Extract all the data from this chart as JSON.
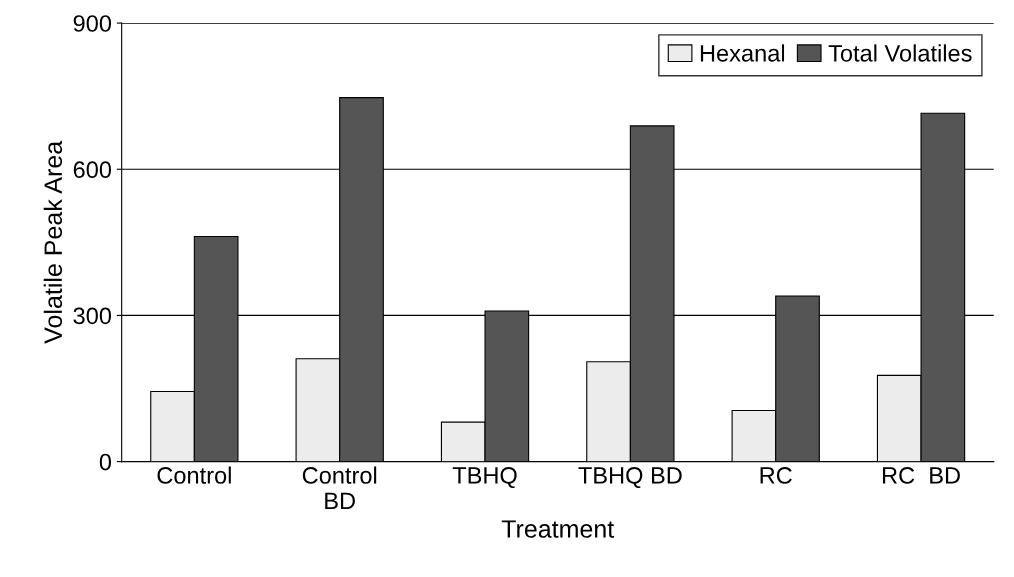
{
  "chart_data": {
    "type": "bar",
    "xlabel": "Treatment",
    "ylabel": "Volatile Peak Area",
    "categories": [
      "Control",
      "Control\nBD",
      "TBHQ",
      "TBHQ BD",
      "RC",
      "RC  BD"
    ],
    "series": [
      {
        "name": "Hexanal",
        "color": "#ececec",
        "values": [
          144,
          211,
          81,
          205,
          105,
          177
        ]
      },
      {
        "name": "Total Volatiles",
        "color": "#555555",
        "values": [
          462,
          747,
          309,
          689,
          340,
          715
        ]
      }
    ],
    "ylim": [
      0,
      900
    ],
    "yticks": [
      0,
      300,
      600,
      900
    ],
    "grid": "y",
    "legend": "top right"
  }
}
